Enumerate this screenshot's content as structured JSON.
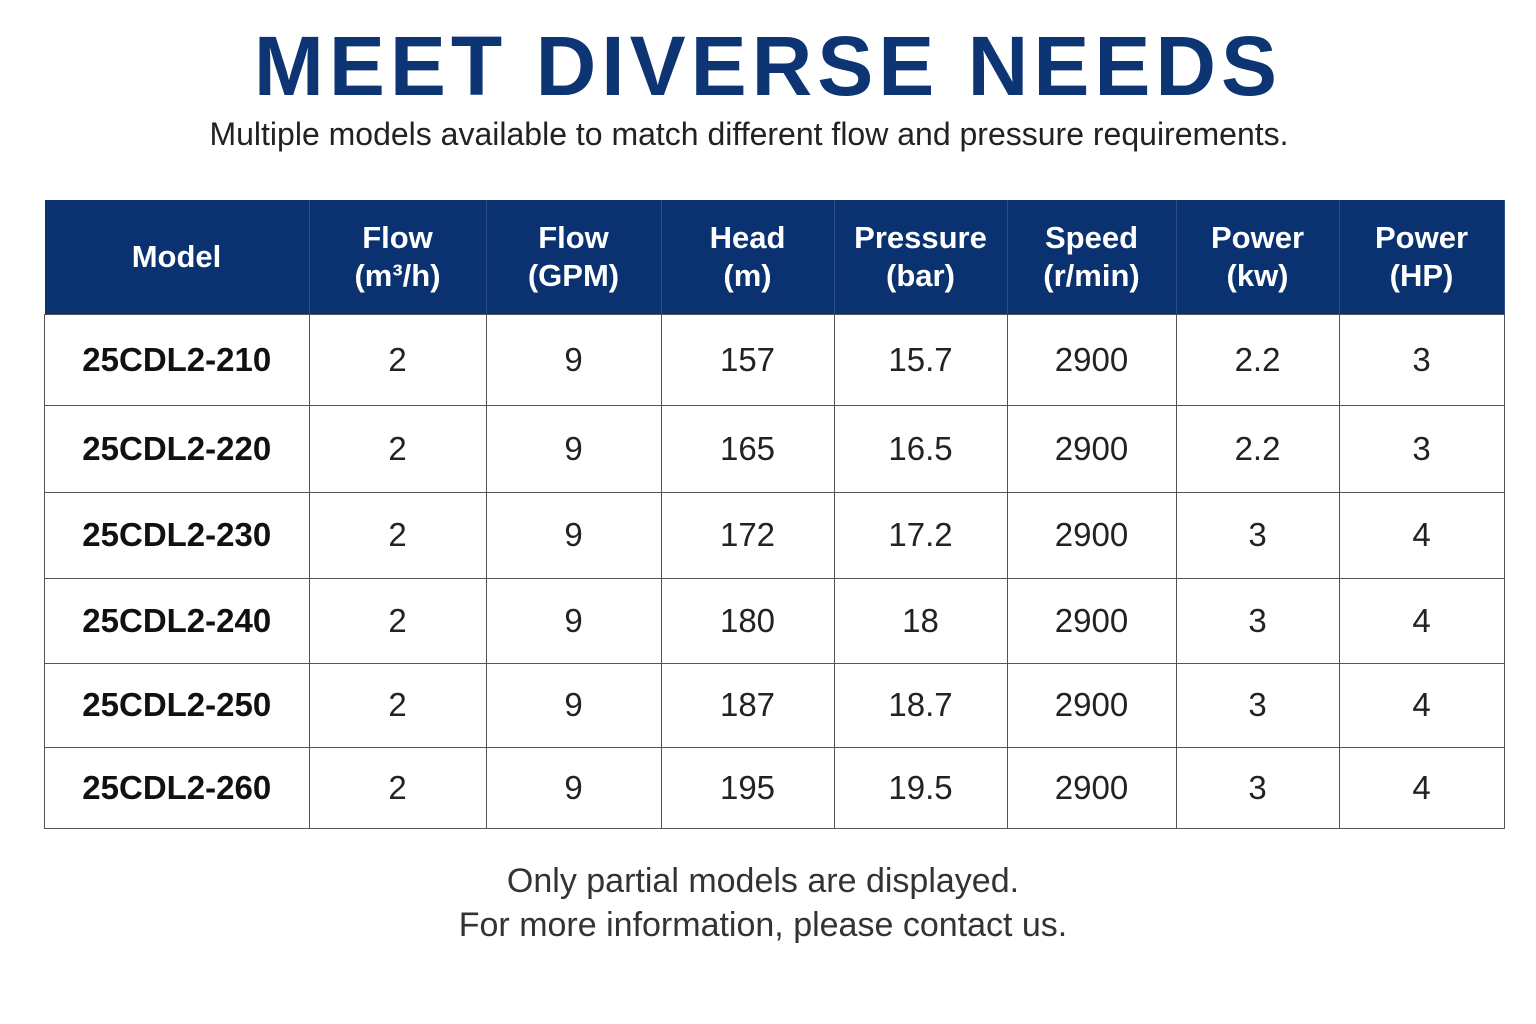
{
  "header": {
    "title": "MEET DIVERSE NEEDS",
    "subtitle": "Multiple models available to match different flow and pressure requirements."
  },
  "table": {
    "columns": [
      [
        "Model"
      ],
      [
        "Flow",
        "(m³/h)"
      ],
      [
        "Flow",
        "(GPM)"
      ],
      [
        "Head",
        "(m)"
      ],
      [
        "Pressure",
        "(bar)"
      ],
      [
        "Speed",
        "(r/min)"
      ],
      [
        "Power",
        "(kw)"
      ],
      [
        "Power",
        "(HP)"
      ]
    ],
    "rows": [
      [
        "25CDL2-210",
        "2",
        "9",
        "157",
        "15.7",
        "2900",
        "2.2",
        "3"
      ],
      [
        "25CDL2-220",
        "2",
        "9",
        "165",
        "16.5",
        "2900",
        "2.2",
        "3"
      ],
      [
        "25CDL2-230",
        "2",
        "9",
        "172",
        "17.2",
        "2900",
        "3",
        "4"
      ],
      [
        "25CDL2-240",
        "2",
        "9",
        "180",
        "18",
        "2900",
        "3",
        "4"
      ],
      [
        "25CDL2-250",
        "2",
        "9",
        "187",
        "18.7",
        "2900",
        "3",
        "4"
      ],
      [
        "25CDL2-260",
        "2",
        "9",
        "195",
        "19.5",
        "2900",
        "3",
        "4"
      ]
    ]
  },
  "footer": {
    "lines": [
      "Only partial models are displayed.",
      "For more information, please contact us."
    ]
  }
}
